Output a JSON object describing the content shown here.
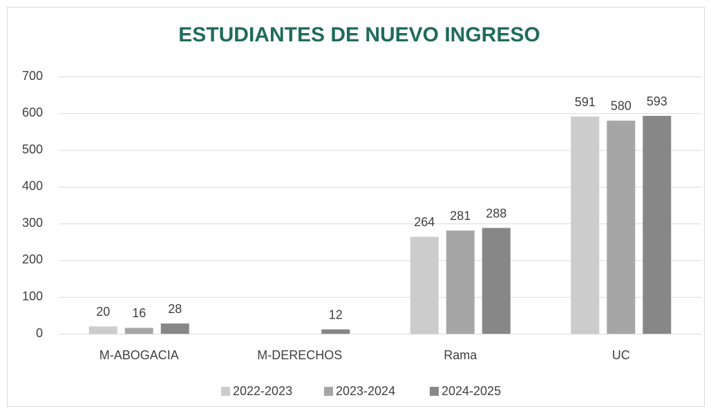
{
  "chart_data": {
    "type": "bar",
    "title": "ESTUDIANTES DE NUEVO INGRESO",
    "categories": [
      "M-ABOGACIA",
      "M-DERECHOS",
      "Rama",
      "UC"
    ],
    "series": [
      {
        "name": "2022-2023",
        "color": "#cccccc",
        "values": [
          20,
          null,
          264,
          591
        ]
      },
      {
        "name": "2023-2024",
        "color": "#a6a6a6",
        "values": [
          16,
          null,
          281,
          580
        ]
      },
      {
        "name": "2024-2025",
        "color": "#878787",
        "values": [
          28,
          12,
          288,
          593
        ]
      }
    ],
    "ylim": [
      0,
      700
    ],
    "yticks": [
      0,
      100,
      200,
      300,
      400,
      500,
      600,
      700
    ],
    "grid": true,
    "legend": "bottom"
  }
}
